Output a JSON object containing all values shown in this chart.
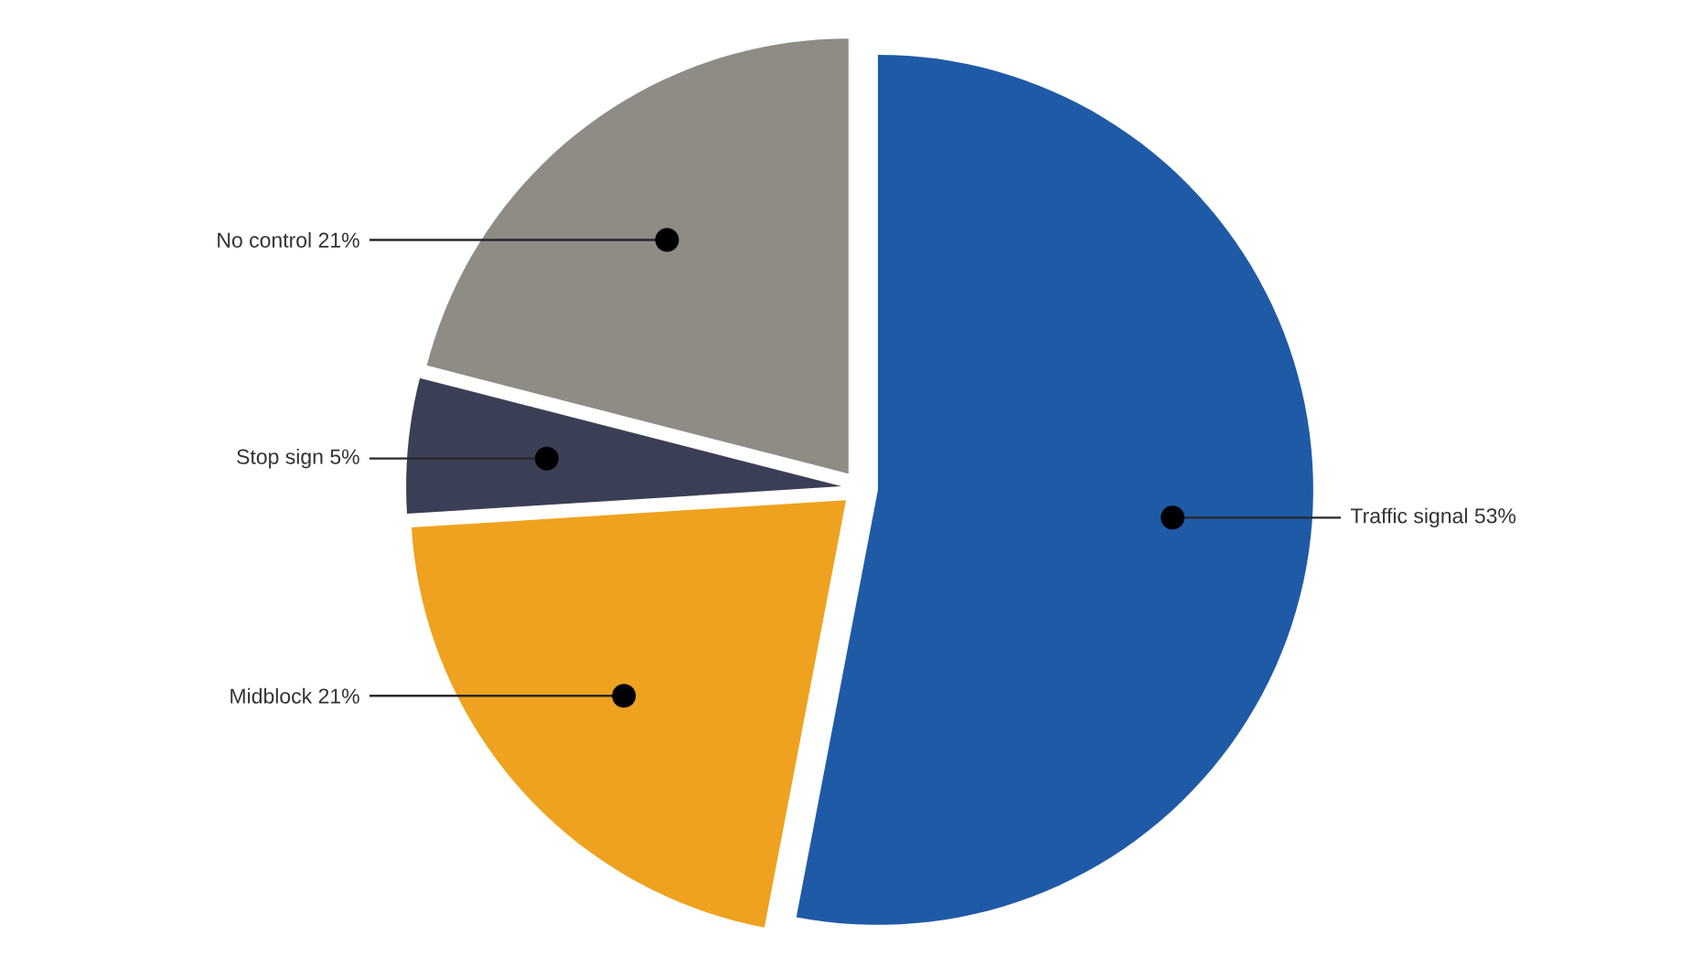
{
  "chart_data": {
    "type": "pie",
    "categories": [
      "Traffic signal",
      "Midblock",
      "Stop sign",
      "No control"
    ],
    "values": [
      53,
      21,
      5,
      21
    ],
    "value_labels": [
      "53%",
      "21%",
      "5%",
      "21%"
    ],
    "colors": [
      "#1f5aa6",
      "#eea21f",
      "#3b3f56",
      "#8f8c86"
    ]
  }
}
